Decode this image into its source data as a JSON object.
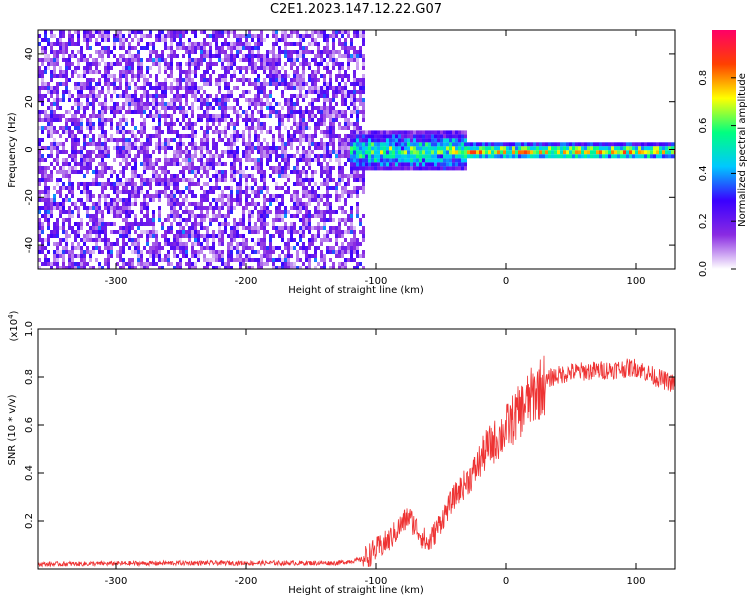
{
  "title": "C2E1.2023.147.12.22.G07",
  "chart_data": [
    {
      "type": "heatmap",
      "xlabel": "Height of straight line (km)",
      "ylabel": "Frequency (Hz)",
      "xlim": [
        -360,
        130
      ],
      "ylim": [
        -50,
        50
      ],
      "xticks": [
        -300,
        -200,
        -100,
        0,
        100
      ],
      "yticks": [
        -40,
        -20,
        0,
        20,
        40
      ],
      "grid": false,
      "colorbar": {
        "label": "Normalized spectral amplitude",
        "range": [
          0,
          1
        ],
        "ticks": [
          "0.0",
          "0.2",
          "0.4",
          "0.6",
          "0.8"
        ],
        "colors": [
          "#ffffff",
          "#8a2be2",
          "#3a00ff",
          "#00c8ff",
          "#00ff80",
          "#ffff00",
          "#ff4000",
          "#ff0066"
        ]
      },
      "regions": [
        {
          "description": "broadband noise",
          "x": [
            -360,
            -110
          ],
          "y": [
            -50,
            50
          ],
          "amplitude": [
            0.05,
            0.25
          ]
        },
        {
          "description": "signal band",
          "x": [
            -120,
            -30
          ],
          "y": [
            -8,
            8
          ],
          "amplitude": [
            0.3,
            0.7
          ]
        },
        {
          "description": "carrier line",
          "x": [
            -30,
            130
          ],
          "y": [
            -3,
            3
          ],
          "amplitude": [
            0.5,
            0.95
          ]
        }
      ]
    },
    {
      "type": "line",
      "xlabel": "Height of straight line (km)",
      "ylabel": "SNR (10 * v/v)",
      "yscale_label": "(x10",
      "yscale_exp": "4",
      "yscale_close": ")",
      "xlim": [
        -360,
        130
      ],
      "ylim": [
        0,
        1.0
      ],
      "xticks": [
        -300,
        -200,
        -100,
        0,
        100
      ],
      "yticks": [
        "0.2",
        "0.4",
        "0.6",
        "0.8",
        "1.0"
      ],
      "series": [
        {
          "color": "#ee3333",
          "profile": [
            [
              -360,
              0.02
            ],
            [
              -250,
              0.025
            ],
            [
              -130,
              0.025
            ],
            [
              -110,
              0.04
            ],
            [
              -90,
              0.12
            ],
            [
              -75,
              0.22
            ],
            [
              -60,
              0.1
            ],
            [
              -50,
              0.2
            ],
            [
              -40,
              0.3
            ],
            [
              -25,
              0.4
            ],
            [
              -15,
              0.5
            ],
            [
              -5,
              0.55
            ],
            [
              5,
              0.62
            ],
            [
              20,
              0.72
            ],
            [
              35,
              0.8
            ],
            [
              50,
              0.82
            ],
            [
              80,
              0.83
            ],
            [
              100,
              0.84
            ],
            [
              115,
              0.8
            ],
            [
              130,
              0.77
            ]
          ]
        }
      ]
    }
  ]
}
